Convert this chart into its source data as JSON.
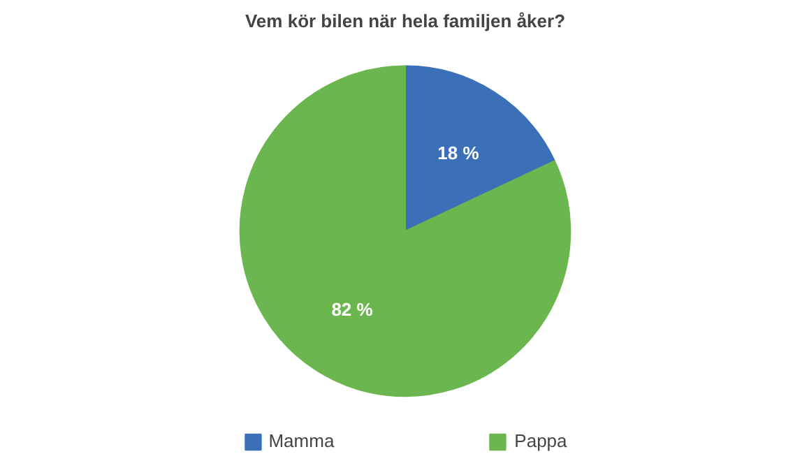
{
  "chart_data": {
    "type": "pie",
    "title": "Vem kör bilen när hela familjen åker?",
    "categories": [
      "Mamma",
      "Pappa"
    ],
    "values": [
      18,
      82
    ],
    "colors": [
      "#3b70b9",
      "#6cb650"
    ],
    "value_labels": [
      "18 %",
      "82 %"
    ],
    "legend": "bottom"
  }
}
